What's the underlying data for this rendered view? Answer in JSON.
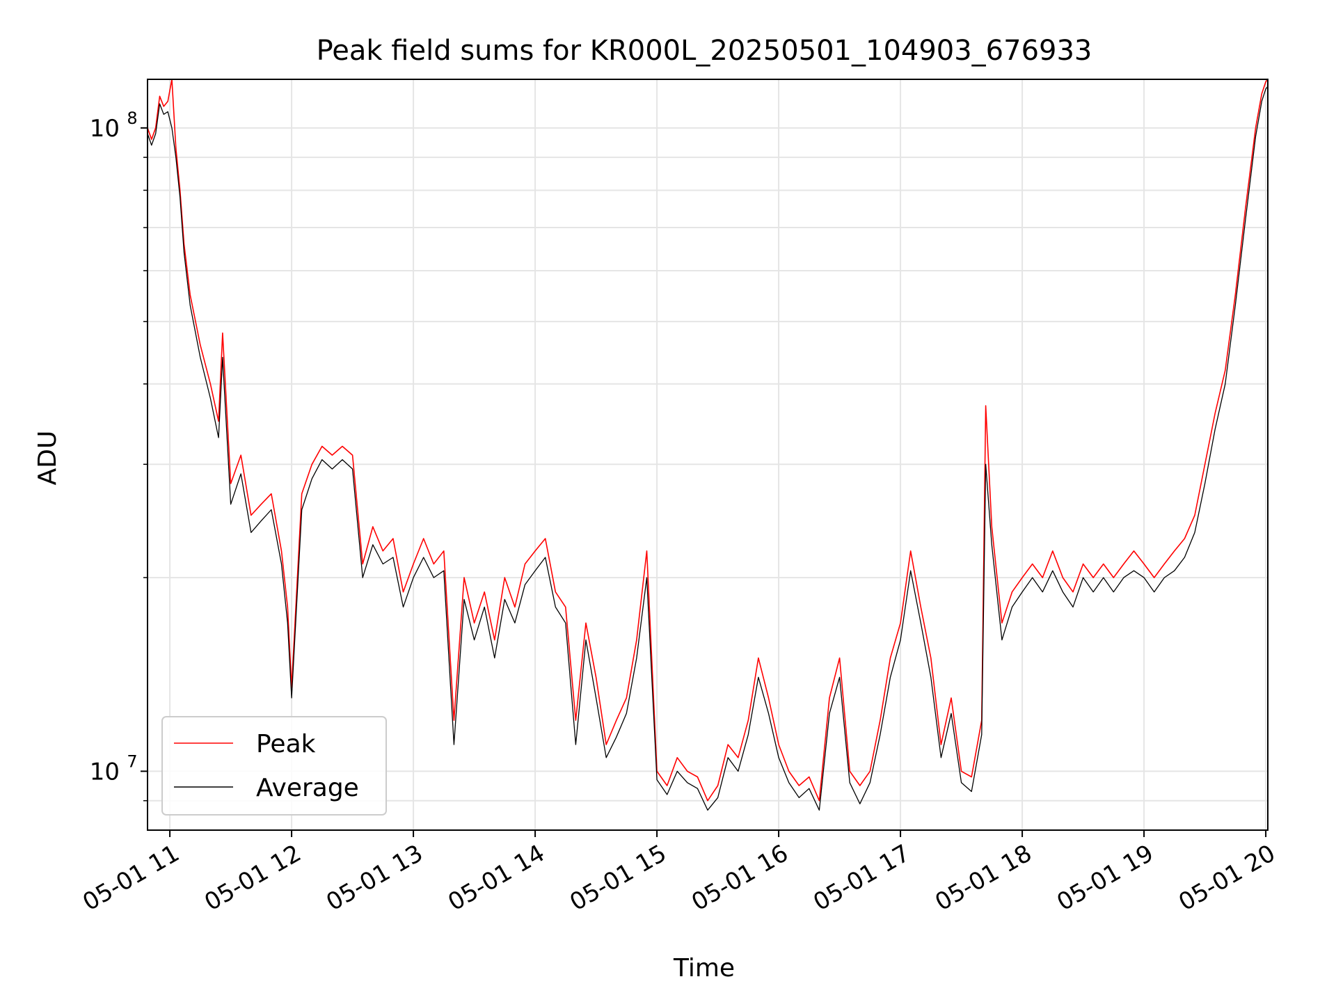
{
  "chart_data": {
    "type": "line",
    "title": "Peak field sums for KR000L_20250501_104903_676933",
    "xlabel": "Time",
    "ylabel": "ADU",
    "yscale": "log",
    "xlim": [
      "05-01 10:49",
      "05-01 20:01"
    ],
    "ylim": [
      8100000,
      119000000
    ],
    "x_ticks": [
      "05-01 11",
      "05-01 12",
      "05-01 13",
      "05-01 14",
      "05-01 15",
      "05-01 16",
      "05-01 17",
      "05-01 18",
      "05-01 19",
      "05-01 20"
    ],
    "y_ticks": [
      {
        "base": "10",
        "exp": "8",
        "value": 100000000
      },
      {
        "base": "10",
        "exp": "7",
        "value": 10000000
      }
    ],
    "grid": true,
    "legend_position": "lower-left",
    "series": [
      {
        "name": "Peak",
        "color": "#ff0000",
        "x": [
          "10:49",
          "10:51",
          "10:53",
          "10:55",
          "10:57",
          "10:59",
          "11:01",
          "11:03",
          "11:05",
          "11:07",
          "11:10",
          "11:15",
          "11:20",
          "11:24",
          "11:26",
          "11:30",
          "11:35",
          "11:40",
          "11:45",
          "11:50",
          "11:55",
          "11:58",
          "12:00",
          "12:05",
          "12:10",
          "12:15",
          "12:20",
          "12:25",
          "12:30",
          "12:35",
          "12:40",
          "12:45",
          "12:50",
          "12:55",
          "13:00",
          "13:05",
          "13:10",
          "13:15",
          "13:20",
          "13:25",
          "13:30",
          "13:35",
          "13:40",
          "13:45",
          "13:50",
          "13:55",
          "14:00",
          "14:05",
          "14:10",
          "14:15",
          "14:20",
          "14:25",
          "14:30",
          "14:35",
          "14:40",
          "14:45",
          "14:50",
          "14:55",
          "15:00",
          "15:05",
          "15:10",
          "15:15",
          "15:20",
          "15:25",
          "15:30",
          "15:35",
          "15:40",
          "15:45",
          "15:50",
          "15:55",
          "16:00",
          "16:05",
          "16:10",
          "16:15",
          "16:20",
          "16:25",
          "16:30",
          "16:35",
          "16:40",
          "16:45",
          "16:50",
          "16:55",
          "17:00",
          "17:05",
          "17:10",
          "17:15",
          "17:20",
          "17:25",
          "17:30",
          "17:35",
          "17:40",
          "17:42",
          "17:45",
          "17:50",
          "17:55",
          "18:00",
          "18:05",
          "18:10",
          "18:15",
          "18:20",
          "18:25",
          "18:30",
          "18:35",
          "18:40",
          "18:45",
          "18:50",
          "18:55",
          "19:00",
          "19:05",
          "19:10",
          "19:15",
          "19:20",
          "19:25",
          "19:30",
          "19:35",
          "19:40",
          "19:45",
          "19:50",
          "19:55",
          "19:58",
          "20:00",
          "20:01"
        ],
        "y": [
          100000000,
          96000000,
          100000000,
          112000000,
          108000000,
          110000000,
          119000000,
          93000000,
          80000000,
          66000000,
          55000000,
          46000000,
          40000000,
          35000000,
          48000000,
          28000000,
          31000000,
          25000000,
          26000000,
          27000000,
          22000000,
          18000000,
          13500000,
          27000000,
          30000000,
          32000000,
          31000000,
          32000000,
          31000000,
          21000000,
          24000000,
          22000000,
          23000000,
          19000000,
          21000000,
          23000000,
          21000000,
          22000000,
          12000000,
          20000000,
          17000000,
          19000000,
          16000000,
          20000000,
          18000000,
          21000000,
          22000000,
          23000000,
          19000000,
          18000000,
          12000000,
          17000000,
          14000000,
          11000000,
          12000000,
          13000000,
          16000000,
          22000000,
          10000000,
          9500000,
          10500000,
          10000000,
          9800000,
          9000000,
          9500000,
          11000000,
          10500000,
          12000000,
          15000000,
          13000000,
          11000000,
          10000000,
          9500000,
          9800000,
          9000000,
          13000000,
          15000000,
          10000000,
          9500000,
          10000000,
          12000000,
          15000000,
          17000000,
          22000000,
          18000000,
          15000000,
          11000000,
          13000000,
          10000000,
          9800000,
          12000000,
          37000000,
          24000000,
          17000000,
          19000000,
          20000000,
          21000000,
          20000000,
          22000000,
          20000000,
          19000000,
          21000000,
          20000000,
          21000000,
          20000000,
          21000000,
          22000000,
          21000000,
          20000000,
          21000000,
          22000000,
          23000000,
          25000000,
          30000000,
          36000000,
          42000000,
          55000000,
          75000000,
          100000000,
          113000000,
          118000000,
          119000000
        ]
      },
      {
        "name": "Average",
        "color": "#000000",
        "x": [
          "10:49",
          "10:51",
          "10:53",
          "10:55",
          "10:57",
          "10:59",
          "11:01",
          "11:03",
          "11:05",
          "11:07",
          "11:10",
          "11:15",
          "11:20",
          "11:24",
          "11:26",
          "11:30",
          "11:35",
          "11:40",
          "11:45",
          "11:50",
          "11:55",
          "11:58",
          "12:00",
          "12:05",
          "12:10",
          "12:15",
          "12:20",
          "12:25",
          "12:30",
          "12:35",
          "12:40",
          "12:45",
          "12:50",
          "12:55",
          "13:00",
          "13:05",
          "13:10",
          "13:15",
          "13:20",
          "13:25",
          "13:30",
          "13:35",
          "13:40",
          "13:45",
          "13:50",
          "13:55",
          "14:00",
          "14:05",
          "14:10",
          "14:15",
          "14:20",
          "14:25",
          "14:30",
          "14:35",
          "14:40",
          "14:45",
          "14:50",
          "14:55",
          "15:00",
          "15:05",
          "15:10",
          "15:15",
          "15:20",
          "15:25",
          "15:30",
          "15:35",
          "15:40",
          "15:45",
          "15:50",
          "15:55",
          "16:00",
          "16:05",
          "16:10",
          "16:15",
          "16:20",
          "16:25",
          "16:30",
          "16:35",
          "16:40",
          "16:45",
          "16:50",
          "16:55",
          "17:00",
          "17:05",
          "17:10",
          "17:15",
          "17:20",
          "17:25",
          "17:30",
          "17:35",
          "17:40",
          "17:42",
          "17:45",
          "17:50",
          "17:55",
          "18:00",
          "18:05",
          "18:10",
          "18:15",
          "18:20",
          "18:25",
          "18:30",
          "18:35",
          "18:40",
          "18:45",
          "18:50",
          "18:55",
          "19:00",
          "19:05",
          "19:10",
          "19:15",
          "19:20",
          "19:25",
          "19:30",
          "19:35",
          "19:40",
          "19:45",
          "19:50",
          "19:55",
          "19:58",
          "20:00",
          "20:01"
        ],
        "y": [
          98000000,
          94000000,
          98000000,
          109000000,
          105000000,
          106000000,
          100000000,
          90000000,
          78000000,
          64000000,
          53000000,
          44000000,
          38000000,
          33000000,
          44000000,
          26000000,
          29000000,
          23500000,
          24500000,
          25500000,
          21000000,
          17000000,
          13000000,
          25500000,
          28500000,
          30500000,
          29500000,
          30500000,
          29500000,
          20000000,
          22500000,
          21000000,
          21500000,
          18000000,
          20000000,
          21500000,
          20000000,
          20500000,
          11000000,
          18500000,
          16000000,
          18000000,
          15000000,
          18500000,
          17000000,
          19500000,
          20500000,
          21500000,
          18000000,
          17000000,
          11000000,
          16000000,
          13000000,
          10500000,
          11300000,
          12300000,
          15000000,
          20000000,
          9700000,
          9200000,
          10000000,
          9600000,
          9400000,
          8700000,
          9100000,
          10500000,
          10000000,
          11400000,
          14000000,
          12300000,
          10500000,
          9600000,
          9100000,
          9400000,
          8700000,
          12300000,
          14000000,
          9600000,
          8900000,
          9600000,
          11400000,
          14000000,
          16000000,
          20500000,
          17000000,
          14000000,
          10500000,
          12300000,
          9600000,
          9300000,
          11400000,
          30000000,
          22500000,
          16000000,
          18000000,
          19000000,
          20000000,
          19000000,
          20500000,
          19000000,
          18000000,
          20000000,
          19000000,
          20000000,
          19000000,
          20000000,
          20500000,
          20000000,
          19000000,
          20000000,
          20500000,
          21500000,
          23500000,
          28000000,
          34000000,
          40000000,
          53000000,
          72000000,
          97000000,
          110000000,
          115000000,
          116000000
        ]
      }
    ]
  }
}
